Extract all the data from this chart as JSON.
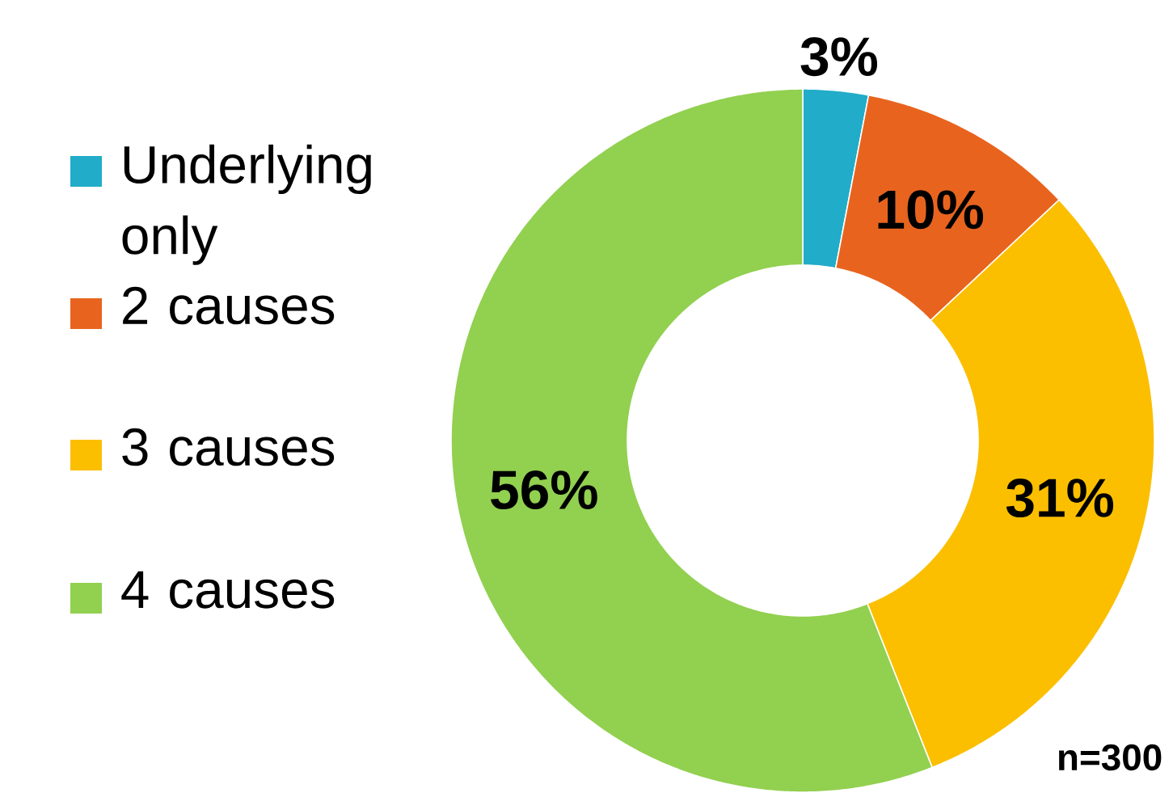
{
  "chart_data": {
    "type": "donut",
    "categories": [
      "Underlying only",
      "2 causes",
      "3 causes",
      "4 causes"
    ],
    "values": [
      3,
      10,
      31,
      56
    ],
    "colors": [
      "#21acc9",
      "#e8641e",
      "#fbbf00",
      "#92d050"
    ],
    "value_labels": [
      "3%",
      "10%",
      "31%",
      "56%"
    ],
    "legend": "left",
    "annotations": [
      "n=300"
    ]
  }
}
